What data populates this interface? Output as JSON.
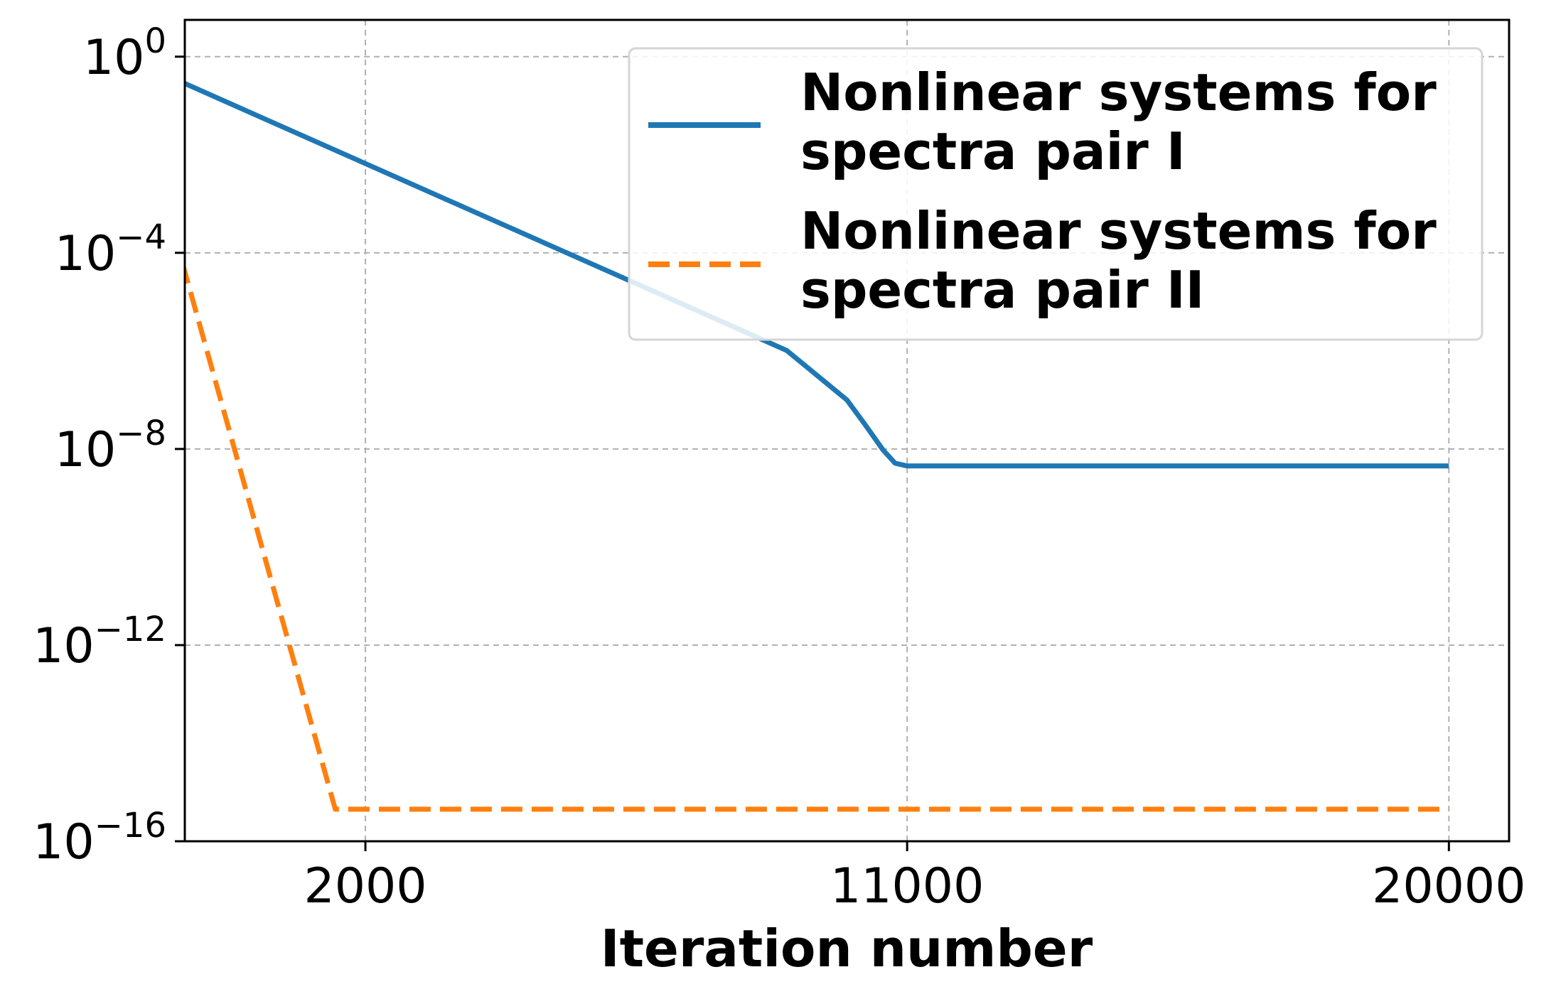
{
  "chart_data": {
    "type": "line",
    "title": "",
    "xlabel": "Iteration number",
    "ylabel": "",
    "x_scale": "linear",
    "y_scale": "log",
    "xlim": [
      -1000,
      21000
    ],
    "ylim_exponent": [
      -16,
      0.75
    ],
    "grid": true,
    "legend_position": "top-right",
    "x_ticks": [
      {
        "value": 2000,
        "label": "2000"
      },
      {
        "value": 11000,
        "label": "11000"
      },
      {
        "value": 20000,
        "label": "20000"
      }
    ],
    "y_ticks": [
      {
        "exponent": 0,
        "base": "10",
        "exp": "0"
      },
      {
        "exponent": -4,
        "base": "10",
        "exp": "−4"
      },
      {
        "exponent": -8,
        "base": "10",
        "exp": "−8"
      },
      {
        "exponent": -12,
        "base": "10",
        "exp": "−12"
      },
      {
        "exponent": -16,
        "base": "10",
        "exp": "−16"
      }
    ],
    "series": [
      {
        "name": "Nonlinear systems for spectra pair I",
        "legend_lines": [
          "Nonlinear systems for",
          "spectra pair I"
        ],
        "color": "#1f77b4",
        "style": "solid",
        "points": [
          [
            -2000,
            1
          ],
          [
            0,
            0.081
          ],
          [
            2000,
            0.0066
          ],
          [
            4000,
            0.00054
          ],
          [
            6000,
            4.4e-05
          ],
          [
            8000,
            3.6e-06
          ],
          [
            9000,
            1.02e-06
          ],
          [
            10000,
            1e-07
          ],
          [
            10300,
            3.16e-08
          ],
          [
            10600,
            9.55e-09
          ],
          [
            10800,
            5.13e-09
          ],
          [
            11000,
            4.5e-09
          ],
          [
            12000,
            4.5e-09
          ],
          [
            20000,
            4.5e-09
          ]
        ]
      },
      {
        "name": "Nonlinear systems for spectra pair II",
        "legend_lines": [
          "Nonlinear systems for",
          "spectra pair II"
        ],
        "color": "#ff7f0e",
        "style": "dashed",
        "points": [
          [
            -2000,
            1
          ],
          [
            1500,
            4.5e-16
          ],
          [
            20000,
            4.5e-16
          ]
        ]
      }
    ]
  }
}
